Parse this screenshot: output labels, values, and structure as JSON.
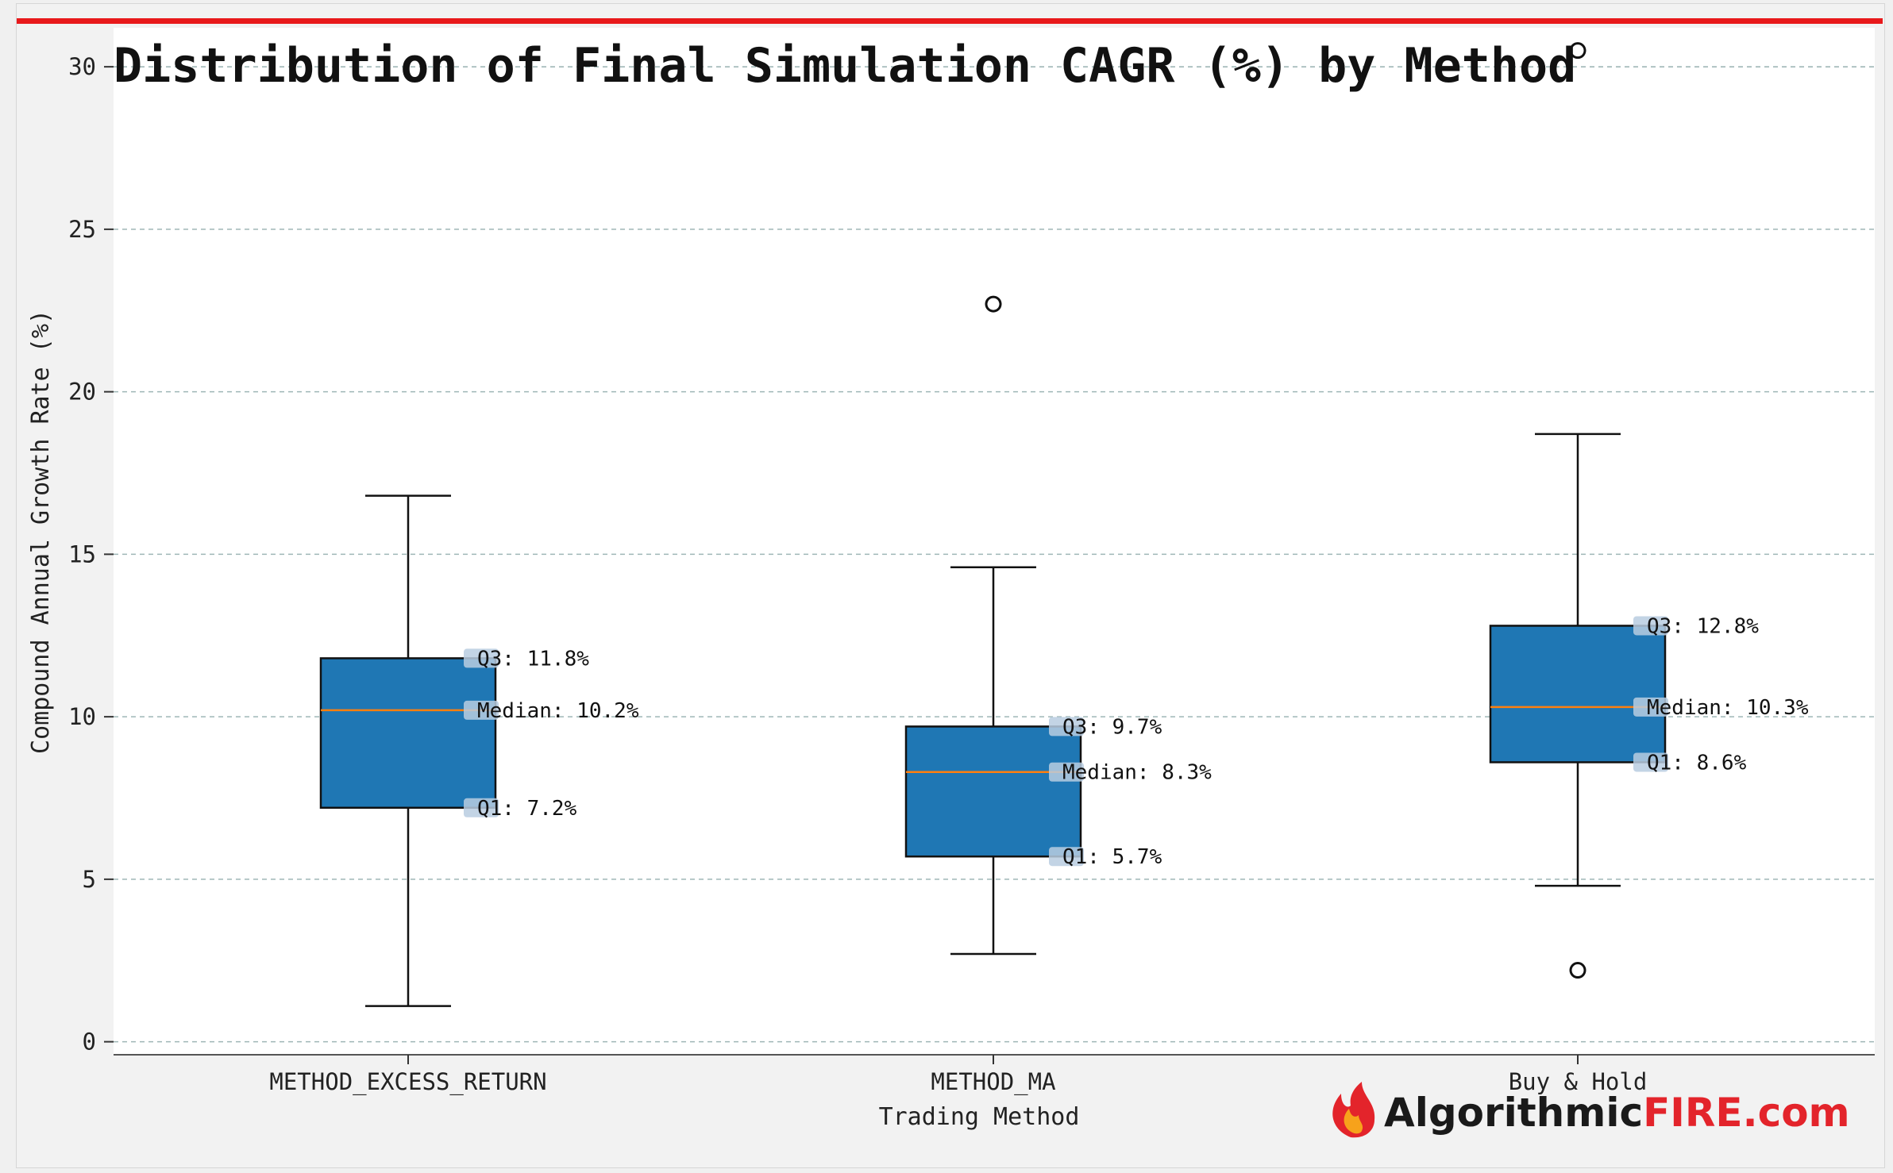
{
  "chart_data": {
    "type": "boxplot",
    "title": "Distribution of Final Simulation CAGR (%) by Method",
    "xlabel": "Trading Method",
    "ylabel": "Compound Annual Growth Rate (%)",
    "ylim": [
      -0.4,
      31.2
    ],
    "yticks": [
      0,
      5,
      10,
      15,
      20,
      25,
      30
    ],
    "grid": true,
    "categories": [
      "METHOD_EXCESS_RETURN",
      "METHOD_MA",
      "Buy & Hold"
    ],
    "boxes": [
      {
        "name": "METHOD_EXCESS_RETURN",
        "whisker_low": 1.1,
        "q1": 7.2,
        "median": 10.2,
        "q3": 11.8,
        "whisker_high": 16.8,
        "outliers": [],
        "labels": {
          "q3": "Q3: 11.8%",
          "median": "Median: 10.2%",
          "q1": "Q1: 7.2%"
        }
      },
      {
        "name": "METHOD_MA",
        "whisker_low": 2.7,
        "q1": 5.7,
        "median": 8.3,
        "q3": 9.7,
        "whisker_high": 14.6,
        "outliers": [
          22.7
        ],
        "labels": {
          "q3": "Q3: 9.7%",
          "median": "Median: 8.3%",
          "q1": "Q1: 5.7%"
        }
      },
      {
        "name": "Buy & Hold",
        "whisker_low": 4.8,
        "q1": 8.6,
        "median": 10.3,
        "q3": 12.8,
        "whisker_high": 18.7,
        "outliers": [
          30.5,
          2.2
        ],
        "labels": {
          "q3": "Q3: 12.8%",
          "median": "Median: 10.3%",
          "q1": "Q1: 8.6%"
        }
      }
    ]
  },
  "colors": {
    "accent_line": "#e8191b",
    "box_fill": "#1f77b4",
    "median_line": "#ff7f0e",
    "grid": "#9fb6b6",
    "label_chip": "#b9cde0"
  },
  "logo": {
    "icon": "flame-icon",
    "text_main": "Algorithmic",
    "text_accent": "FIRE.com",
    "main_color": "#1a1a1a",
    "accent_color": "#e3242b"
  }
}
